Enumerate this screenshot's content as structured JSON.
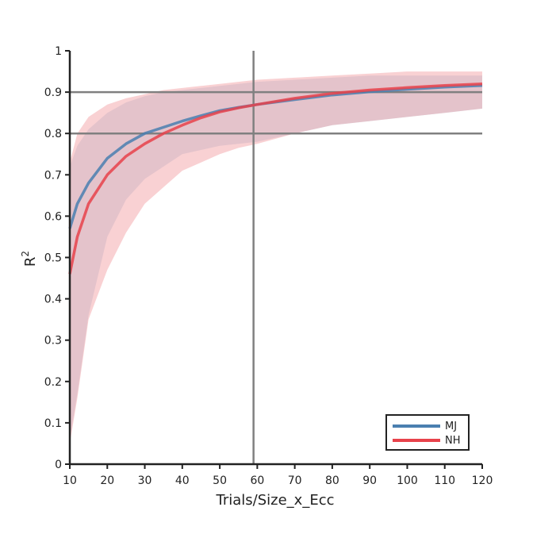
{
  "chart_data": {
    "type": "line",
    "xlabel": "Trials/Size_x_Ecc",
    "ylabel_base": "R",
    "ylabel_sup": "2",
    "xlim": [
      10,
      120
    ],
    "ylim": [
      0,
      1
    ],
    "xticks": [
      10,
      20,
      30,
      40,
      50,
      60,
      70,
      80,
      90,
      100,
      110,
      120
    ],
    "yticks": [
      0,
      0.1,
      0.2,
      0.3,
      0.4,
      0.5,
      0.6,
      0.7,
      0.8,
      0.9,
      1
    ],
    "ytick_labels": [
      "0",
      "0.1",
      "0.2",
      "0.3",
      "0.4",
      "0.5",
      "0.6",
      "0.7",
      "0.8",
      "0.9",
      "1"
    ],
    "reference_lines": {
      "horizontal": [
        0.8,
        0.9
      ],
      "vertical": [
        59
      ],
      "color": "#808080"
    },
    "legend_position": "lower-right",
    "grid": false,
    "series": [
      {
        "name": "MJ",
        "color": "#4a7fb0",
        "band_color": "#a9c5dd",
        "x": [
          10,
          12,
          15,
          20,
          25,
          30,
          35,
          40,
          45,
          50,
          55,
          60,
          70,
          80,
          90,
          100,
          110,
          120
        ],
        "y": [
          0.57,
          0.63,
          0.68,
          0.74,
          0.775,
          0.8,
          0.815,
          0.83,
          0.843,
          0.855,
          0.863,
          0.87,
          0.882,
          0.893,
          0.901,
          0.907,
          0.912,
          0.916
        ],
        "lower": [
          0.06,
          0.17,
          0.36,
          0.55,
          0.64,
          0.69,
          0.72,
          0.75,
          0.76,
          0.77,
          0.775,
          0.78,
          0.8,
          0.82,
          0.83,
          0.84,
          0.85,
          0.86
        ],
        "upper": [
          0.72,
          0.77,
          0.81,
          0.85,
          0.875,
          0.89,
          0.9,
          0.905,
          0.91,
          0.915,
          0.92,
          0.925,
          0.93,
          0.935,
          0.94,
          0.94,
          0.94,
          0.94
        ]
      },
      {
        "name": "NH",
        "color": "#e8424b",
        "band_color": "#f3a3a8",
        "x": [
          10,
          12,
          15,
          20,
          25,
          30,
          35,
          40,
          45,
          50,
          55,
          60,
          70,
          80,
          90,
          100,
          110,
          120
        ],
        "y": [
          0.46,
          0.55,
          0.63,
          0.7,
          0.745,
          0.775,
          0.8,
          0.82,
          0.838,
          0.852,
          0.862,
          0.87,
          0.885,
          0.897,
          0.905,
          0.911,
          0.916,
          0.92
        ],
        "lower": [
          0.05,
          0.16,
          0.35,
          0.47,
          0.56,
          0.63,
          0.67,
          0.71,
          0.73,
          0.75,
          0.765,
          0.775,
          0.8,
          0.82,
          0.83,
          0.84,
          0.85,
          0.86
        ],
        "upper": [
          0.73,
          0.8,
          0.84,
          0.87,
          0.885,
          0.895,
          0.905,
          0.91,
          0.915,
          0.92,
          0.925,
          0.93,
          0.935,
          0.94,
          0.945,
          0.95,
          0.95,
          0.95
        ]
      }
    ]
  }
}
